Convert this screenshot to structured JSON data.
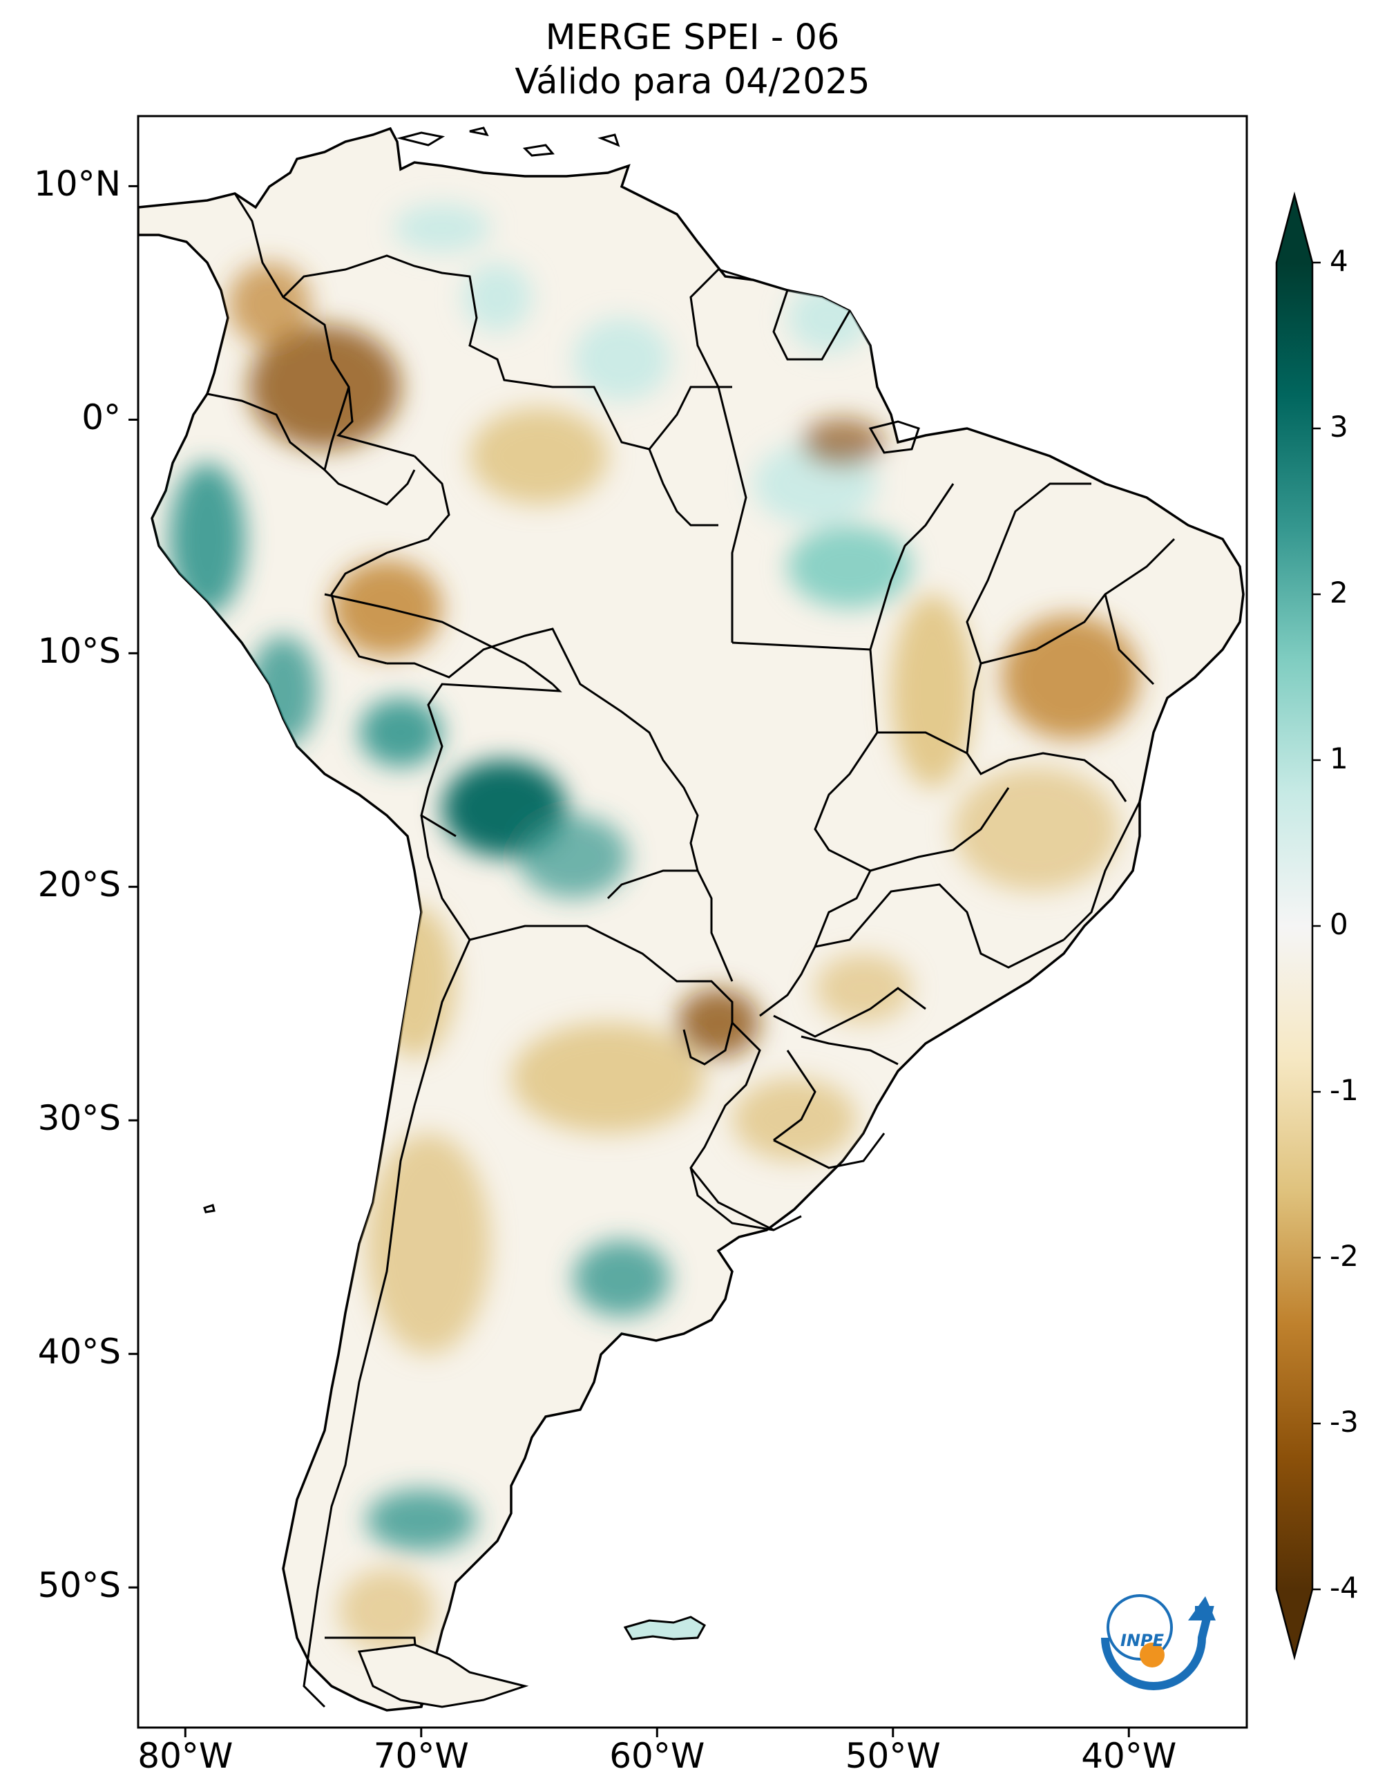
{
  "title": {
    "line1": "MERGE   SPEI - 06",
    "line2": "Válido para 04/2025"
  },
  "map": {
    "region": "South America",
    "lon_range": [
      -82,
      -35
    ],
    "lat_range": [
      -56,
      13
    ],
    "lat_ticks": [
      {
        "value": 10,
        "label": "10°N"
      },
      {
        "value": 0,
        "label": "0°"
      },
      {
        "value": -10,
        "label": "10°S"
      },
      {
        "value": -20,
        "label": "20°S"
      },
      {
        "value": -30,
        "label": "30°S"
      },
      {
        "value": -40,
        "label": "40°S"
      },
      {
        "value": -50,
        "label": "50°S"
      }
    ],
    "lon_ticks": [
      {
        "value": -80,
        "label": "80°W"
      },
      {
        "value": -70,
        "label": "70°W"
      },
      {
        "value": -60,
        "label": "60°W"
      },
      {
        "value": -50,
        "label": "50°W"
      },
      {
        "value": -40,
        "label": "40°W"
      }
    ],
    "colors": {
      "frame": "#000000",
      "ocean": "#ffffff",
      "wet_strong": "#00443c",
      "wet": "#35978f",
      "wet_light": "#c7eae5",
      "neutral": "#f5f5f5",
      "dry_light": "#f6e8c3",
      "dry": "#bf812d",
      "dry_strong": "#543005"
    },
    "logo": {
      "text": "INPE",
      "color_blue": "#1a6fb8",
      "color_orange": "#f0931e"
    }
  },
  "colorbar": {
    "ticks": [
      {
        "value": 4,
        "label": "4"
      },
      {
        "value": 3,
        "label": "3"
      },
      {
        "value": 2,
        "label": "2"
      },
      {
        "value": 1,
        "label": "1"
      },
      {
        "value": 0,
        "label": "0"
      },
      {
        "value": -1,
        "label": "-1"
      },
      {
        "value": -2,
        "label": "-2"
      },
      {
        "value": -3,
        "label": "-3"
      },
      {
        "value": -4,
        "label": "-4"
      }
    ],
    "range": [
      -4,
      4
    ],
    "extend": "both",
    "colormap": "BrBG",
    "stops": [
      "#543005",
      "#8c510a",
      "#bf812d",
      "#dfc27d",
      "#f6e8c3",
      "#f5f5f5",
      "#c7eae5",
      "#80cdc1",
      "#35978f",
      "#01665e",
      "#003c30"
    ]
  }
}
